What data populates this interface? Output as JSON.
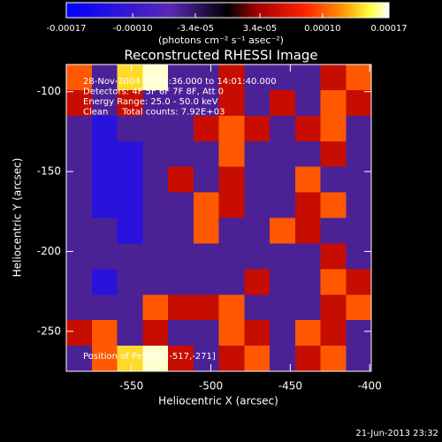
{
  "chart_data": {
    "type": "heatmap",
    "title": "Reconstructed RHESSI Image",
    "xlabel": "Heliocentric X (arcsec)",
    "ylabel": "Heliocentric Y (arcsec)",
    "annotations": [
      "28-Nov-2004 13:58:36.000 to 14:01:40.000",
      "Detectors: 4F 5F 6F 7F 8F, Att 0",
      "Energy Range: 25.0 - 50.0 keV",
      "Clean     Total counts: 7.92E+03"
    ],
    "peak_label": "Position of Peak = [-517,-271]",
    "footer": "21-Jun-2013 23:32",
    "colorbar_label": "(photons cm⁻² s⁻¹ asec⁻²)",
    "xlim": [
      -591,
      -399
    ],
    "xticks": [
      -550,
      -500,
      -450,
      -400
    ],
    "ylim": [
      -275,
      -83
    ],
    "yticks": [
      -250,
      -200,
      -150,
      -100
    ],
    "zlim": [
      -0.00017,
      0.00017
    ],
    "zticks": [
      -0.00017,
      {
        "value": -0.0001,
        "label": "-0.00010"
      },
      {
        "value": -3.4e-05,
        "label": "-3.4e-05"
      },
      {
        "value": 3.4e-05,
        "label": "3.4e-05"
      },
      {
        "value": 0.0001,
        "label": "0.00010"
      },
      0.00017
    ],
    "colorscale": [
      [
        -0.00017,
        "#0000ff"
      ],
      [
        -6e-05,
        "#5a28b4"
      ],
      [
        0,
        "#000000"
      ],
      [
        3e-05,
        "#a00000"
      ],
      [
        8e-05,
        "#ff2000"
      ],
      [
        0.00012,
        "#ff9000"
      ],
      [
        0.00015,
        "#ffff40"
      ],
      [
        0.00017,
        "#ffffff"
      ]
    ],
    "z": [
      [
        0.0001,
        -5e-05,
        0.00014,
        0.000165,
        -5e-05,
        -5e-05,
        5e-05,
        -5e-05,
        -5e-05,
        -5e-05,
        5e-05,
        0.0001
      ],
      [
        5e-05,
        -5e-05,
        5e-05,
        -5e-05,
        -5e-05,
        -5e-05,
        5e-05,
        -5e-05,
        5e-05,
        -5e-05,
        0.0001,
        5e-05
      ],
      [
        -5e-05,
        -0.00012,
        -5e-05,
        -5e-05,
        -5e-05,
        5e-05,
        0.0001,
        5e-05,
        -5e-05,
        5e-05,
        0.0001,
        -5e-05
      ],
      [
        -5e-05,
        -0.00012,
        -0.00012,
        -5e-05,
        -5e-05,
        -5e-05,
        0.0001,
        -5e-05,
        -5e-05,
        -5e-05,
        5e-05,
        -5e-05
      ],
      [
        -5e-05,
        -0.00012,
        -0.00012,
        -5e-05,
        5e-05,
        -5e-05,
        5e-05,
        -5e-05,
        -5e-05,
        0.0001,
        -5e-05,
        -5e-05
      ],
      [
        -5e-05,
        -0.00012,
        -0.00012,
        -5e-05,
        -5e-05,
        0.0001,
        5e-05,
        -5e-05,
        -5e-05,
        5e-05,
        0.0001,
        -5e-05
      ],
      [
        -5e-05,
        -5e-05,
        -0.00012,
        -5e-05,
        -5e-05,
        0.0001,
        -5e-05,
        -5e-05,
        0.0001,
        5e-05,
        -5e-05,
        -5e-05
      ],
      [
        -5e-05,
        -5e-05,
        -5e-05,
        -5e-05,
        -5e-05,
        -5e-05,
        -5e-05,
        -5e-05,
        -5e-05,
        -5e-05,
        5e-05,
        -5e-05
      ],
      [
        -5e-05,
        -0.00012,
        -5e-05,
        -5e-05,
        -5e-05,
        -5e-05,
        -5e-05,
        5e-05,
        -5e-05,
        -5e-05,
        0.0001,
        5e-05
      ],
      [
        -5e-05,
        -5e-05,
        -5e-05,
        0.0001,
        5e-05,
        5e-05,
        0.0001,
        -5e-05,
        -5e-05,
        -5e-05,
        5e-05,
        0.0001
      ],
      [
        5e-05,
        0.0001,
        -5e-05,
        5e-05,
        -5e-05,
        -5e-05,
        0.0001,
        5e-05,
        -5e-05,
        0.0001,
        5e-05,
        -5e-05
      ],
      [
        -5e-05,
        0.0001,
        0.00014,
        0.000165,
        5e-05,
        -5e-05,
        5e-05,
        0.0001,
        -5e-05,
        5e-05,
        0.0001,
        -5e-05
      ]
    ]
  }
}
